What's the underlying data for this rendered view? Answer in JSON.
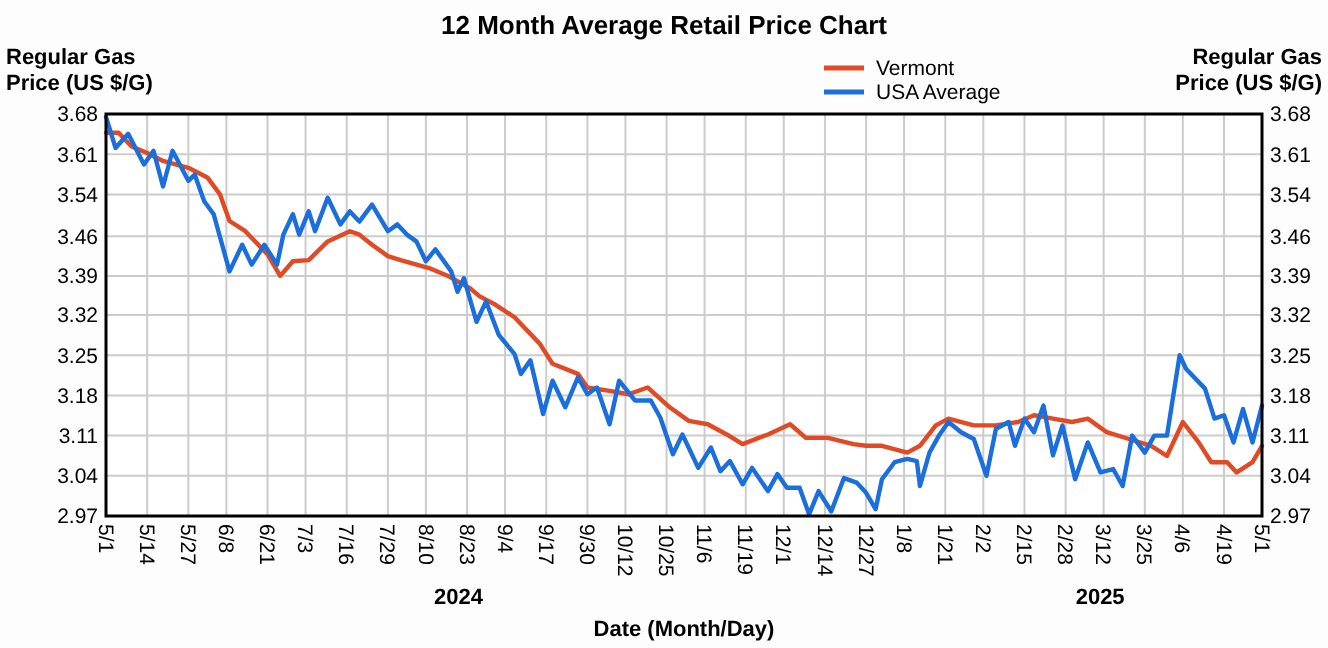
{
  "chart_data": {
    "type": "line",
    "title": "12 Month Average Retail Price Chart",
    "xlabel": "Date (Month/Day)",
    "ylabel": "Regular Gas Price (US $/G)",
    "y2label": "Regular Gas Price (US $/G)",
    "annotations": [
      "2024",
      "2025"
    ],
    "xlim": [
      "2024-05-01",
      "2025-05-01"
    ],
    "xticks": [
      {
        "value": "2024-05-01",
        "label": "5/1"
      },
      {
        "value": "2024-05-14",
        "label": "5/14"
      },
      {
        "value": "2024-05-27",
        "label": "5/27"
      },
      {
        "value": "2024-06-08",
        "label": "6/8"
      },
      {
        "value": "2024-06-21",
        "label": "6/21"
      },
      {
        "value": "2024-07-03",
        "label": "7/3"
      },
      {
        "value": "2024-07-16",
        "label": "7/16"
      },
      {
        "value": "2024-07-29",
        "label": "7/29"
      },
      {
        "value": "2024-08-10",
        "label": "8/10"
      },
      {
        "value": "2024-08-23",
        "label": "8/23"
      },
      {
        "value": "2024-09-04",
        "label": "9/4"
      },
      {
        "value": "2024-09-17",
        "label": "9/17"
      },
      {
        "value": "2024-09-30",
        "label": "9/30"
      },
      {
        "value": "2024-10-12",
        "label": "10/12"
      },
      {
        "value": "2024-10-25",
        "label": "10/25"
      },
      {
        "value": "2024-11-06",
        "label": "11/6"
      },
      {
        "value": "2024-11-19",
        "label": "11/19"
      },
      {
        "value": "2024-12-01",
        "label": "12/1"
      },
      {
        "value": "2024-12-14",
        "label": "12/14"
      },
      {
        "value": "2024-12-27",
        "label": "12/27"
      },
      {
        "value": "2025-01-08",
        "label": "1/8"
      },
      {
        "value": "2025-01-21",
        "label": "1/21"
      },
      {
        "value": "2025-02-02",
        "label": "2/2"
      },
      {
        "value": "2025-02-15",
        "label": "2/15"
      },
      {
        "value": "2025-02-28",
        "label": "2/28"
      },
      {
        "value": "2025-03-12",
        "label": "3/12"
      },
      {
        "value": "2025-03-25",
        "label": "3/25"
      },
      {
        "value": "2025-04-06",
        "label": "4/6"
      },
      {
        "value": "2025-04-19",
        "label": "4/19"
      },
      {
        "value": "2025-05-01",
        "label": "5/1"
      }
    ],
    "ylim": [
      2.97,
      3.68
    ],
    "yticks": [
      2.97,
      {
        "value": 3.041,
        "label": "3.04"
      },
      {
        "value": 3.112,
        "label": "3.11"
      },
      {
        "value": 3.183,
        "label": "3.18"
      },
      {
        "value": 3.254,
        "label": "3.25"
      },
      {
        "value": 3.325,
        "label": "3.32"
      },
      {
        "value": 3.394,
        "label": "3.39"
      },
      {
        "value": 3.464,
        "label": "3.46"
      },
      {
        "value": 3.538,
        "label": "3.54"
      },
      {
        "value": 3.609,
        "label": "3.61"
      },
      3.68
    ],
    "y2lim": [
      2.97,
      3.68
    ],
    "y2ticks": [
      2.97,
      {
        "value": 3.041,
        "label": "3.04"
      },
      {
        "value": 3.112,
        "label": "3.11"
      },
      {
        "value": 3.183,
        "label": "3.18"
      },
      {
        "value": 3.254,
        "label": "3.25"
      },
      {
        "value": 3.325,
        "label": "3.32"
      },
      {
        "value": 3.394,
        "label": "3.39"
      },
      {
        "value": 3.464,
        "label": "3.46"
      },
      {
        "value": 3.538,
        "label": "3.54"
      },
      {
        "value": 3.609,
        "label": "3.61"
      },
      3.68
    ],
    "grid": true,
    "legend": "top right",
    "marker": "none",
    "line_style": "solid",
    "series": [
      {
        "name": "Vermont",
        "color": "#e04a25",
        "x": [
          "2024-05-01",
          "2024-05-05",
          "2024-05-09",
          "2024-05-14",
          "2024-05-19",
          "2024-05-27",
          "2024-06-02",
          "2024-06-06",
          "2024-06-09",
          "2024-06-14",
          "2024-06-21",
          "2024-06-25",
          "2024-06-29",
          "2024-07-04",
          "2024-07-10",
          "2024-07-17",
          "2024-07-20",
          "2024-07-24",
          "2024-07-29",
          "2024-08-02",
          "2024-08-11",
          "2024-08-17",
          "2024-08-24",
          "2024-08-27",
          "2024-09-01",
          "2024-09-07",
          "2024-09-15",
          "2024-09-19",
          "2024-09-27",
          "2024-09-30",
          "2024-10-07",
          "2024-10-13",
          "2024-10-19",
          "2024-10-26",
          "2024-11-01",
          "2024-11-07",
          "2024-11-13",
          "2024-11-18",
          "2024-11-26",
          "2024-12-03",
          "2024-12-08",
          "2024-12-15",
          "2024-12-23",
          "2024-12-27",
          "2025-01-01",
          "2025-01-09",
          "2025-01-13",
          "2025-01-18",
          "2025-01-22",
          "2025-01-30",
          "2025-02-06",
          "2025-02-13",
          "2025-02-18",
          "2025-02-24",
          "2025-03-02",
          "2025-03-07",
          "2025-03-13",
          "2025-03-20",
          "2025-03-27",
          "2025-04-01",
          "2025-04-06",
          "2025-04-11",
          "2025-04-15",
          "2025-04-20",
          "2025-04-23",
          "2025-04-28",
          "2025-05-01"
        ],
        "values": [
          3.647,
          3.647,
          3.623,
          3.611,
          3.597,
          3.585,
          3.568,
          3.538,
          3.491,
          3.473,
          3.432,
          3.394,
          3.42,
          3.422,
          3.455,
          3.473,
          3.467,
          3.449,
          3.429,
          3.422,
          3.408,
          3.394,
          3.372,
          3.358,
          3.343,
          3.321,
          3.274,
          3.239,
          3.221,
          3.197,
          3.191,
          3.185,
          3.197,
          3.162,
          3.138,
          3.132,
          3.114,
          3.097,
          3.114,
          3.132,
          3.108,
          3.108,
          3.097,
          3.094,
          3.094,
          3.082,
          3.094,
          3.13,
          3.142,
          3.13,
          3.13,
          3.136,
          3.148,
          3.142,
          3.136,
          3.142,
          3.118,
          3.106,
          3.094,
          3.076,
          3.136,
          3.1,
          3.065,
          3.065,
          3.047,
          3.065,
          3.094
        ]
      },
      {
        "name": "USA Average",
        "color": "#1a6fdc",
        "x": [
          "2024-05-01",
          "2024-05-04",
          "2024-05-08",
          "2024-05-13",
          "2024-05-16",
          "2024-05-19",
          "2024-05-22",
          "2024-05-27",
          "2024-05-29",
          "2024-06-01",
          "2024-06-04",
          "2024-06-09",
          "2024-06-13",
          "2024-06-16",
          "2024-06-20",
          "2024-06-24",
          "2024-06-26",
          "2024-06-29",
          "2024-07-01",
          "2024-07-04",
          "2024-07-06",
          "2024-07-10",
          "2024-07-14",
          "2024-07-17",
          "2024-07-20",
          "2024-07-24",
          "2024-07-29",
          "2024-08-01",
          "2024-08-04",
          "2024-08-07",
          "2024-08-10",
          "2024-08-13",
          "2024-08-18",
          "2024-08-20",
          "2024-08-22",
          "2024-08-26",
          "2024-08-29",
          "2024-09-02",
          "2024-09-07",
          "2024-09-09",
          "2024-09-12",
          "2024-09-16",
          "2024-09-19",
          "2024-09-23",
          "2024-09-27",
          "2024-09-30",
          "2024-10-03",
          "2024-10-07",
          "2024-10-10",
          "2024-10-15",
          "2024-10-20",
          "2024-10-23",
          "2024-10-27",
          "2024-10-30",
          "2024-11-04",
          "2024-11-08",
          "2024-11-11",
          "2024-11-14",
          "2024-11-18",
          "2024-11-21",
          "2024-11-26",
          "2024-11-29",
          "2024-12-02",
          "2024-12-06",
          "2024-12-09",
          "2024-12-12",
          "2024-12-16",
          "2024-12-20",
          "2024-12-24",
          "2024-12-27",
          "2024-12-30",
          "2025-01-01",
          "2025-01-05",
          "2025-01-09",
          "2025-01-12",
          "2025-01-13",
          "2025-01-16",
          "2025-01-19",
          "2025-01-22",
          "2025-01-26",
          "2025-01-30",
          "2025-02-03",
          "2025-02-06",
          "2025-02-10",
          "2025-02-12",
          "2025-02-15",
          "2025-02-18",
          "2025-02-21",
          "2025-02-24",
          "2025-02-27",
          "2025-03-03",
          "2025-03-07",
          "2025-03-11",
          "2025-03-15",
          "2025-03-18",
          "2025-03-21",
          "2025-03-25",
          "2025-03-28",
          "2025-04-01",
          "2025-04-05",
          "2025-04-07",
          "2025-04-13",
          "2025-04-16",
          "2025-04-19",
          "2025-04-22",
          "2025-04-25",
          "2025-04-28",
          "2025-05-01"
        ],
        "values": [
          3.675,
          3.62,
          3.645,
          3.591,
          3.615,
          3.552,
          3.615,
          3.562,
          3.573,
          3.526,
          3.503,
          3.402,
          3.449,
          3.414,
          3.449,
          3.414,
          3.467,
          3.503,
          3.467,
          3.508,
          3.473,
          3.532,
          3.485,
          3.508,
          3.49,
          3.52,
          3.473,
          3.485,
          3.467,
          3.455,
          3.42,
          3.441,
          3.402,
          3.366,
          3.39,
          3.313,
          3.349,
          3.29,
          3.256,
          3.221,
          3.245,
          3.15,
          3.209,
          3.162,
          3.215,
          3.185,
          3.197,
          3.132,
          3.209,
          3.174,
          3.174,
          3.144,
          3.079,
          3.114,
          3.055,
          3.091,
          3.049,
          3.067,
          3.026,
          3.055,
          3.014,
          3.044,
          3.02,
          3.02,
          2.973,
          3.014,
          2.978,
          3.037,
          3.029,
          3.011,
          2.982,
          3.035,
          3.065,
          3.071,
          3.067,
          3.023,
          3.082,
          3.112,
          3.136,
          3.118,
          3.106,
          3.041,
          3.124,
          3.136,
          3.094,
          3.142,
          3.118,
          3.165,
          3.077,
          3.13,
          3.035,
          3.1,
          3.047,
          3.053,
          3.023,
          3.112,
          3.082,
          3.112,
          3.112,
          3.254,
          3.23,
          3.195,
          3.142,
          3.148,
          3.1,
          3.159,
          3.1,
          3.165
        ]
      }
    ]
  }
}
